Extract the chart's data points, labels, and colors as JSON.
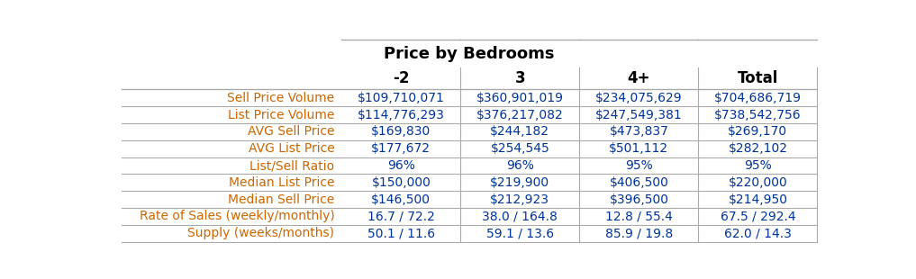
{
  "title": "Price by Bedrooms",
  "col_headers": [
    "-2",
    "3",
    "4+",
    "Total"
  ],
  "row_labels": [
    "Sell Price Volume",
    "List Price Volume",
    "AVG Sell Price",
    "AVG List Price",
    "List/Sell Ratio",
    "Median List Price",
    "Median Sell Price",
    "Rate of Sales (weekly/monthly)",
    "Supply (weeks/months)"
  ],
  "table_data": [
    [
      "$109,710,071",
      "$360,901,019",
      "$234,075,629",
      "$704,686,719"
    ],
    [
      "$114,776,293",
      "$376,217,082",
      "$247,549,381",
      "$738,542,756"
    ],
    [
      "$169,830",
      "$244,182",
      "$473,837",
      "$269,170"
    ],
    [
      "$177,672",
      "$254,545",
      "$501,112",
      "$282,102"
    ],
    [
      "96%",
      "96%",
      "95%",
      "95%"
    ],
    [
      "$150,000",
      "$219,900",
      "$406,500",
      "$220,000"
    ],
    [
      "$146,500",
      "$212,923",
      "$396,500",
      "$214,950"
    ],
    [
      "16.7 / 72.2",
      "38.0 / 164.8",
      "12.8 / 55.4",
      "67.5 / 292.4"
    ],
    [
      "50.1 / 11.6",
      "59.1 / 13.6",
      "85.9 / 19.8",
      "62.0 / 14.3"
    ]
  ],
  "label_color": "#cc6600",
  "data_color": "#003399",
  "header_color": "#000000",
  "title_color": "#000000",
  "bg_color": "#ffffff",
  "line_color": "#aaaaaa",
  "title_fontsize": 13,
  "header_fontsize": 12,
  "cell_fontsize": 10,
  "label_fontsize": 10
}
